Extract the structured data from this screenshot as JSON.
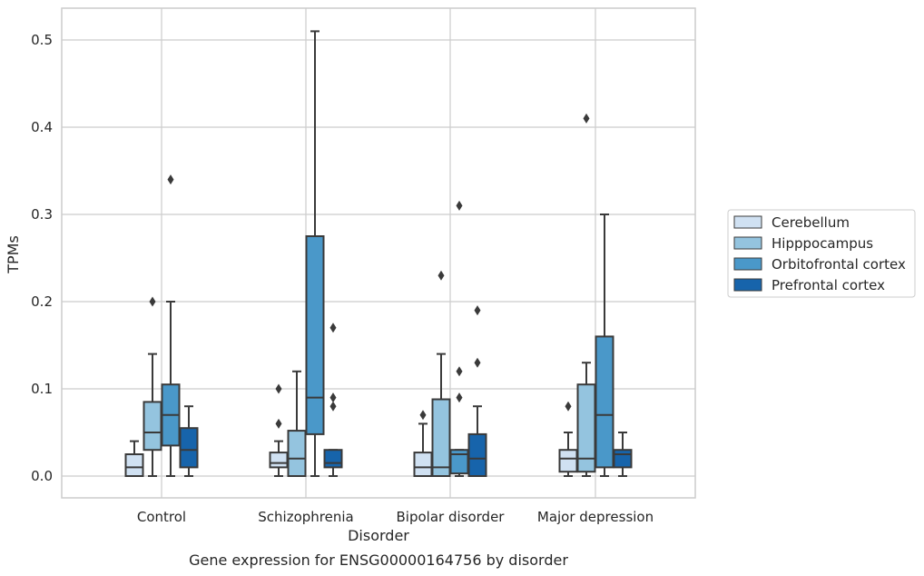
{
  "caption": "Gene expression for ENSG00000164756 by disorder",
  "colors": {
    "Cerebellum": "#d0e1f2",
    "Hipppocampus": "#94c4df",
    "Orbitofrontal cortex": "#4a98c9",
    "Prefrontal cortex": "#1764ab",
    "edge": "#3a3a3a",
    "grid": "#cccccc",
    "frame": "#cccccc"
  },
  "chart_data": {
    "type": "box",
    "title": "",
    "xlabel": "Disorder",
    "ylabel": "TPMs",
    "ylim": [
      -0.025,
      0.537
    ],
    "yticks": [
      0.0,
      0.1,
      0.2,
      0.3,
      0.4,
      0.5
    ],
    "ytick_labels": [
      "0.0",
      "0.1",
      "0.2",
      "0.3",
      "0.4",
      "0.5"
    ],
    "grid": true,
    "legend_position": "right",
    "categories": [
      "Control",
      "Schizophrenia",
      "Bipolar disorder",
      "Major depression"
    ],
    "series": [
      {
        "name": "Cerebellum",
        "boxes": [
          {
            "whislo": 0.0,
            "q1": 0.0,
            "med": 0.01,
            "q3": 0.025,
            "whishi": 0.04,
            "fliers": []
          },
          {
            "whislo": 0.0,
            "q1": 0.01,
            "med": 0.015,
            "q3": 0.027,
            "whishi": 0.04,
            "fliers": [
              0.06,
              0.1
            ]
          },
          {
            "whislo": 0.0,
            "q1": 0.0,
            "med": 0.01,
            "q3": 0.027,
            "whishi": 0.06,
            "fliers": [
              0.07
            ]
          },
          {
            "whislo": 0.0,
            "q1": 0.005,
            "med": 0.02,
            "q3": 0.03,
            "whishi": 0.05,
            "fliers": [
              0.08
            ]
          }
        ]
      },
      {
        "name": "Hipppocampus",
        "boxes": [
          {
            "whislo": 0.0,
            "q1": 0.03,
            "med": 0.05,
            "q3": 0.085,
            "whishi": 0.14,
            "fliers": [
              0.2
            ]
          },
          {
            "whislo": 0.0,
            "q1": 0.0,
            "med": 0.02,
            "q3": 0.052,
            "whishi": 0.12,
            "fliers": []
          },
          {
            "whislo": 0.0,
            "q1": 0.0,
            "med": 0.01,
            "q3": 0.088,
            "whishi": 0.14,
            "fliers": [
              0.23
            ]
          },
          {
            "whislo": 0.0,
            "q1": 0.005,
            "med": 0.02,
            "q3": 0.105,
            "whishi": 0.13,
            "fliers": [
              0.41
            ]
          }
        ]
      },
      {
        "name": "Orbitofrontal cortex",
        "boxes": [
          {
            "whislo": 0.0,
            "q1": 0.035,
            "med": 0.07,
            "q3": 0.105,
            "whishi": 0.2,
            "fliers": [
              0.34
            ]
          },
          {
            "whislo": 0.0,
            "q1": 0.048,
            "med": 0.09,
            "q3": 0.275,
            "whishi": 0.51,
            "fliers": []
          },
          {
            "whislo": 0.0,
            "q1": 0.003,
            "med": 0.025,
            "q3": 0.03,
            "whishi": 0.03,
            "fliers": [
              0.09,
              0.12,
              0.31
            ]
          },
          {
            "whislo": 0.0,
            "q1": 0.01,
            "med": 0.07,
            "q3": 0.16,
            "whishi": 0.3,
            "fliers": []
          }
        ]
      },
      {
        "name": "Prefrontal cortex",
        "boxes": [
          {
            "whislo": 0.0,
            "q1": 0.01,
            "med": 0.03,
            "q3": 0.055,
            "whishi": 0.08,
            "fliers": []
          },
          {
            "whislo": 0.0,
            "q1": 0.01,
            "med": 0.015,
            "q3": 0.03,
            "whishi": 0.03,
            "fliers": [
              0.08,
              0.09,
              0.17
            ]
          },
          {
            "whislo": 0.0,
            "q1": 0.0,
            "med": 0.02,
            "q3": 0.048,
            "whishi": 0.08,
            "fliers": [
              0.13,
              0.19
            ]
          },
          {
            "whislo": 0.0,
            "q1": 0.01,
            "med": 0.025,
            "q3": 0.03,
            "whishi": 0.05,
            "fliers": []
          }
        ]
      }
    ]
  }
}
